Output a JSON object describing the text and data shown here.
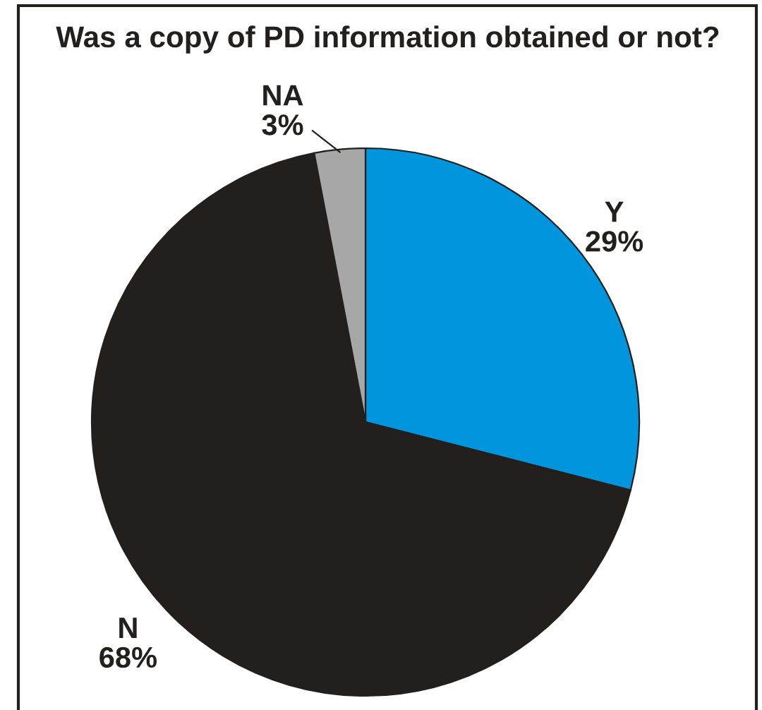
{
  "chart_data": {
    "type": "pie",
    "title": "Was a copy of PD information obtained or not?",
    "categories": [
      "Y",
      "N",
      "NA"
    ],
    "values": [
      29,
      68,
      3
    ],
    "value_labels": [
      "29%",
      "68%",
      "3%"
    ],
    "colors": [
      "#0095dc",
      "#231f1c",
      "#a8a7a7"
    ],
    "legend": false
  }
}
